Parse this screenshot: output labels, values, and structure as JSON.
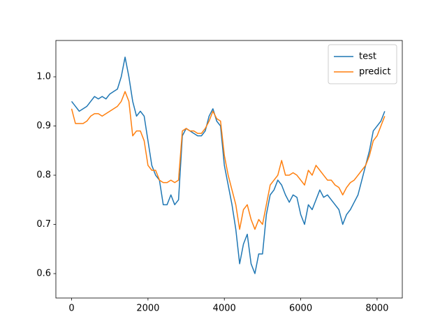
{
  "chart_data": {
    "type": "line",
    "x": [
      0,
      100,
      200,
      300,
      400,
      500,
      600,
      700,
      800,
      900,
      1000,
      1100,
      1200,
      1300,
      1400,
      1500,
      1600,
      1700,
      1800,
      1900,
      2000,
      2100,
      2200,
      2300,
      2400,
      2500,
      2600,
      2700,
      2800,
      2900,
      3000,
      3100,
      3200,
      3300,
      3400,
      3500,
      3600,
      3700,
      3800,
      3900,
      4000,
      4100,
      4200,
      4300,
      4400,
      4500,
      4600,
      4700,
      4800,
      4900,
      5000,
      5100,
      5200,
      5300,
      5400,
      5500,
      5600,
      5700,
      5800,
      5900,
      6000,
      6100,
      6200,
      6300,
      6400,
      6500,
      6600,
      6700,
      6800,
      6900,
      7000,
      7100,
      7200,
      7300,
      7400,
      7500,
      7600,
      7700,
      7800,
      7900,
      8000,
      8100,
      8200
    ],
    "series": [
      {
        "name": "test",
        "color": "#1f77b4",
        "values": [
          0.95,
          0.94,
          0.93,
          0.935,
          0.94,
          0.95,
          0.96,
          0.955,
          0.96,
          0.955,
          0.965,
          0.97,
          0.975,
          1.0,
          1.04,
          1.0,
          0.95,
          0.92,
          0.93,
          0.92,
          0.87,
          0.82,
          0.8,
          0.79,
          0.74,
          0.74,
          0.76,
          0.74,
          0.75,
          0.88,
          0.895,
          0.89,
          0.885,
          0.88,
          0.88,
          0.89,
          0.92,
          0.935,
          0.91,
          0.9,
          0.82,
          0.78,
          0.74,
          0.69,
          0.62,
          0.66,
          0.68,
          0.62,
          0.6,
          0.64,
          0.64,
          0.72,
          0.76,
          0.77,
          0.79,
          0.78,
          0.76,
          0.745,
          0.76,
          0.755,
          0.72,
          0.7,
          0.74,
          0.73,
          0.75,
          0.77,
          0.755,
          0.76,
          0.75,
          0.74,
          0.73,
          0.7,
          0.72,
          0.73,
          0.745,
          0.76,
          0.79,
          0.82,
          0.85,
          0.89,
          0.9,
          0.91,
          0.93
        ]
      },
      {
        "name": "predict",
        "color": "#ff7f0e",
        "values": [
          0.935,
          0.905,
          0.905,
          0.905,
          0.91,
          0.92,
          0.925,
          0.925,
          0.92,
          0.925,
          0.93,
          0.935,
          0.94,
          0.95,
          0.97,
          0.95,
          0.88,
          0.89,
          0.89,
          0.87,
          0.82,
          0.81,
          0.81,
          0.79,
          0.785,
          0.785,
          0.79,
          0.785,
          0.79,
          0.89,
          0.895,
          0.89,
          0.89,
          0.885,
          0.885,
          0.895,
          0.91,
          0.93,
          0.915,
          0.91,
          0.84,
          0.8,
          0.77,
          0.74,
          0.69,
          0.73,
          0.74,
          0.71,
          0.69,
          0.71,
          0.7,
          0.74,
          0.78,
          0.79,
          0.8,
          0.83,
          0.8,
          0.8,
          0.805,
          0.8,
          0.79,
          0.78,
          0.81,
          0.8,
          0.82,
          0.81,
          0.8,
          0.79,
          0.79,
          0.78,
          0.775,
          0.76,
          0.775,
          0.785,
          0.79,
          0.8,
          0.81,
          0.82,
          0.84,
          0.87,
          0.88,
          0.9,
          0.92
        ]
      }
    ],
    "xlim": [
      -412,
      8660
    ],
    "ylim": [
      0.5504,
      1.0738
    ],
    "xticks": [
      0,
      2000,
      4000,
      6000,
      8000
    ],
    "yticks": [
      0.6,
      0.7,
      0.8,
      0.9,
      {
        "value": 1,
        "label": "1.0"
      }
    ],
    "legend": "upper right"
  }
}
